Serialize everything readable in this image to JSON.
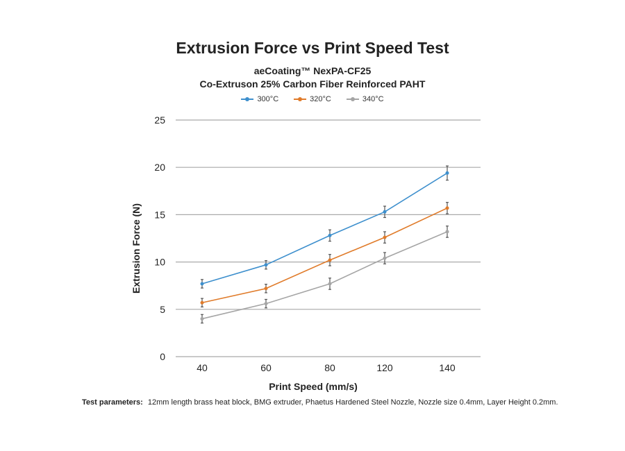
{
  "chart_data": {
    "type": "line",
    "title": "Extrusion Force vs Print Speed Test",
    "subtitle_lines": [
      "aeCoating™ NexPA-CF25",
      "Co-Extruson 25% Carbon Fiber Reinforced PAHT"
    ],
    "xlabel": "Print Speed (mm/s)",
    "ylabel": "Extrusion Force (N)",
    "categories": [
      "40",
      "60",
      "80",
      "120",
      "140"
    ],
    "ylim": [
      0,
      25
    ],
    "yticks": [
      0,
      5,
      10,
      15,
      20,
      25
    ],
    "grid": true,
    "legend_position": "top-center",
    "series": [
      {
        "name": "300°C",
        "color": "#3d8fcd",
        "values": [
          7.7,
          9.7,
          12.8,
          15.3,
          19.4
        ],
        "errors": [
          0.45,
          0.45,
          0.6,
          0.6,
          0.75
        ]
      },
      {
        "name": "320°C",
        "color": "#e07b2a",
        "values": [
          5.7,
          7.2,
          10.2,
          12.6,
          15.7
        ],
        "errors": [
          0.45,
          0.45,
          0.6,
          0.6,
          0.6
        ]
      },
      {
        "name": "340°C",
        "color": "#a5a5a5",
        "values": [
          4.0,
          5.6,
          7.7,
          10.4,
          13.2
        ],
        "errors": [
          0.45,
          0.45,
          0.6,
          0.6,
          0.6
        ]
      }
    ]
  },
  "footnote": {
    "label": "Test parameters:",
    "text": "12mm length brass heat block, BMG extruder, Phaetus Hardened Steel Nozzle, Nozzle size 0.4mm, Layer Height 0.2mm."
  }
}
